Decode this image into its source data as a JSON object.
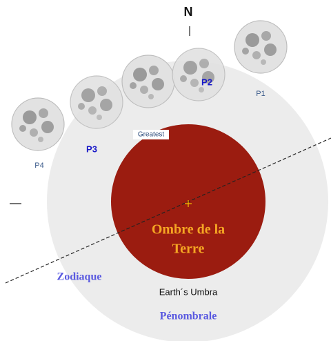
{
  "compass": {
    "north": "N"
  },
  "positions": {
    "p1": "P1",
    "p2": "P2",
    "greatest": "Greatest",
    "p3": "P3",
    "p4": "P4"
  },
  "umbra": {
    "label_line1": "Ombre de la",
    "label_line2": "Terre",
    "english": "Earth´s Umbra"
  },
  "ecliptic": {
    "label": "Zodiaque"
  },
  "penumbra": {
    "label": "Pénombrale"
  }
}
